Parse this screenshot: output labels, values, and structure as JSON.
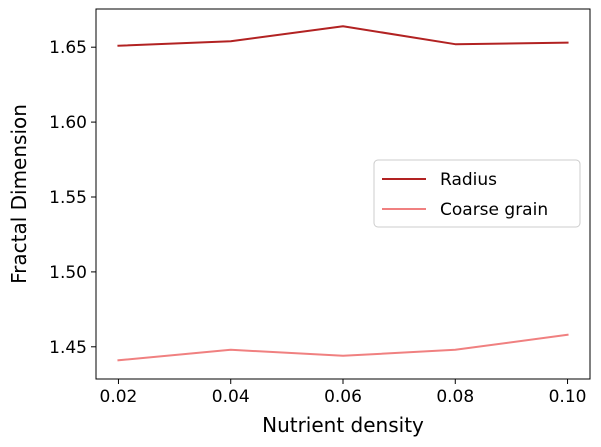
{
  "chart_data": {
    "type": "line",
    "xlabel": "Nutrient density",
    "ylabel": "Fractal Dimension",
    "x": [
      0.02,
      0.04,
      0.06,
      0.08,
      0.1
    ],
    "xticks": [
      "0.02",
      "0.04",
      "0.06",
      "0.08",
      "0.10"
    ],
    "yticks": [
      "1.45",
      "1.50",
      "1.55",
      "1.60",
      "1.65"
    ],
    "xlim": [
      0.016,
      0.104
    ],
    "ylim": [
      1.4285,
      1.6755
    ],
    "grid": false,
    "legend_position": "center-right",
    "series": [
      {
        "name": "Radius",
        "color": "#b22222",
        "values": [
          1.651,
          1.654,
          1.664,
          1.652,
          1.653
        ]
      },
      {
        "name": "Coarse grain",
        "color": "#f08080",
        "values": [
          1.441,
          1.448,
          1.444,
          1.448,
          1.458
        ]
      }
    ]
  }
}
